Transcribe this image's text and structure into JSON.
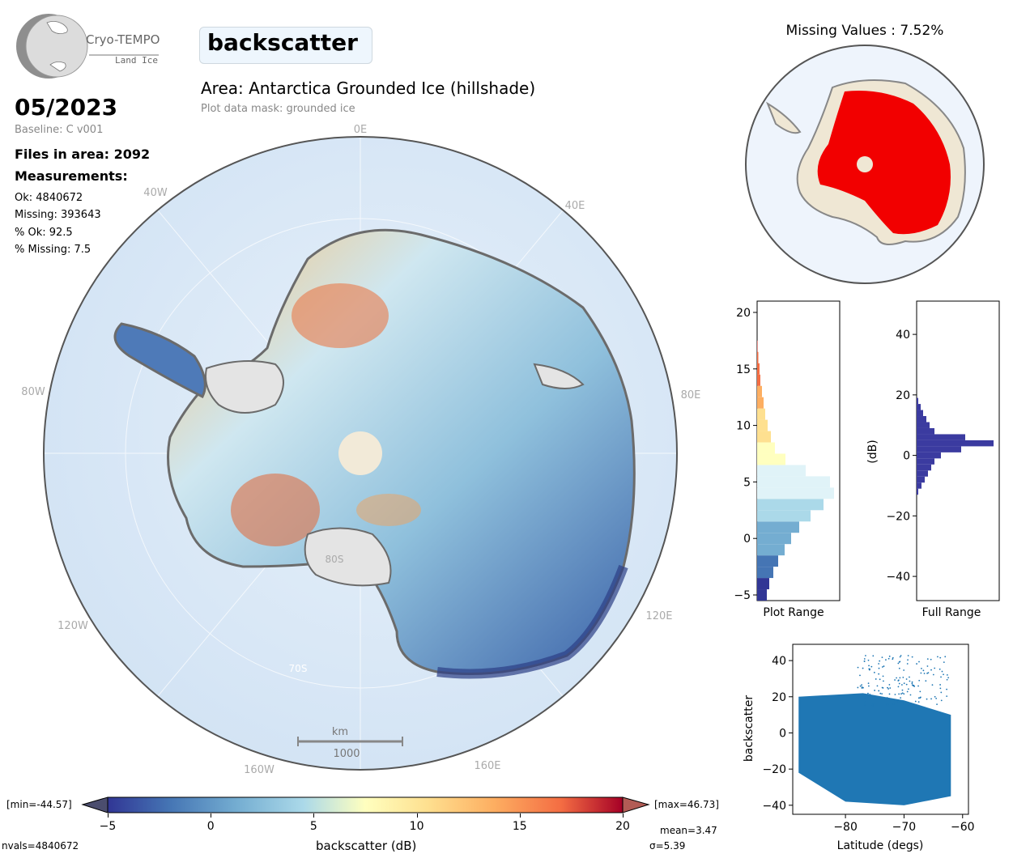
{
  "logo": {
    "name": "Cryo-TEMPO",
    "sub": "Land Ice"
  },
  "parameter": "backscatter",
  "date": "05/2023",
  "baseline": "Baseline: C v001",
  "area_title": "Area: Antarctica Grounded Ice (hillshade)",
  "mask_note": "Plot data mask: grounded ice",
  "stats": {
    "files": "Files in area: 2092",
    "measurements_heading": "Measurements:",
    "ok": "Ok: 4840672",
    "missing": "Missing: 393643",
    "pct_ok": "% Ok: 92.5",
    "pct_missing": "% Missing: 7.5"
  },
  "map": {
    "lon_labels": {
      "l0": "0E",
      "l40e": "40E",
      "l80e": "80E",
      "l120e": "120E",
      "l160e": "160E",
      "l40w": "40W",
      "l80w": "80W",
      "l120w": "120W",
      "l160w": "160W"
    },
    "lat_labels": {
      "l80s": "80S",
      "l70s": "70S"
    },
    "scalebar_unit": "km",
    "scalebar_value": "1000"
  },
  "missing_title": "Missing Values : 7.52%",
  "colorbar": {
    "min_label": "[min=-44.57]",
    "max_label": "[max=46.73]",
    "label": "backscatter (dB)",
    "ticks": [
      "−5",
      "0",
      "5",
      "10",
      "15",
      "20"
    ],
    "mean": "mean=3.47",
    "sigma": "σ=5.39",
    "nvals": "nvals=4840672"
  },
  "chart_data": [
    {
      "type": "bar",
      "orientation": "horizontal",
      "xlabel": "Plot Range",
      "ylim": [
        -5.5,
        21
      ],
      "yticks": [
        "−5",
        "0",
        "5",
        "10",
        "15",
        "20"
      ],
      "bins_center": [
        -5,
        -4,
        -3,
        -2,
        -1,
        0,
        1,
        2,
        3,
        4,
        5,
        6,
        7,
        8,
        9,
        10,
        11,
        12,
        13,
        14,
        15,
        16,
        17
      ],
      "counts": [
        0.12,
        0.15,
        0.2,
        0.26,
        0.34,
        0.42,
        0.52,
        0.66,
        0.82,
        0.95,
        0.9,
        0.6,
        0.35,
        0.22,
        0.17,
        0.13,
        0.1,
        0.08,
        0.06,
        0.04,
        0.03,
        0.015,
        0.005
      ]
    },
    {
      "type": "bar",
      "orientation": "horizontal",
      "xlabel": "Full Range",
      "ylabel": "(dB)",
      "ylim": [
        -48,
        51
      ],
      "yticks": [
        "−40",
        "−20",
        "0",
        "20",
        "40"
      ],
      "bins_center": [
        -12,
        -10,
        -8,
        -6,
        -4,
        -2,
        0,
        2,
        4,
        6,
        8,
        10,
        12,
        14,
        16,
        18
      ],
      "counts": [
        0.02,
        0.06,
        0.1,
        0.14,
        0.18,
        0.22,
        0.3,
        0.55,
        0.95,
        0.6,
        0.22,
        0.16,
        0.12,
        0.08,
        0.05,
        0.02
      ]
    },
    {
      "type": "scatter",
      "xlabel": "Latitude (degs)",
      "ylabel": "backscatter",
      "xlim": [
        -89,
        -59
      ],
      "ylim": [
        -45,
        49
      ],
      "xticks": [
        "−80",
        "−70",
        "−60"
      ],
      "yticks": [
        "40",
        "20",
        "0",
        "−20",
        "−40"
      ],
      "color": "#1f77b4"
    }
  ]
}
